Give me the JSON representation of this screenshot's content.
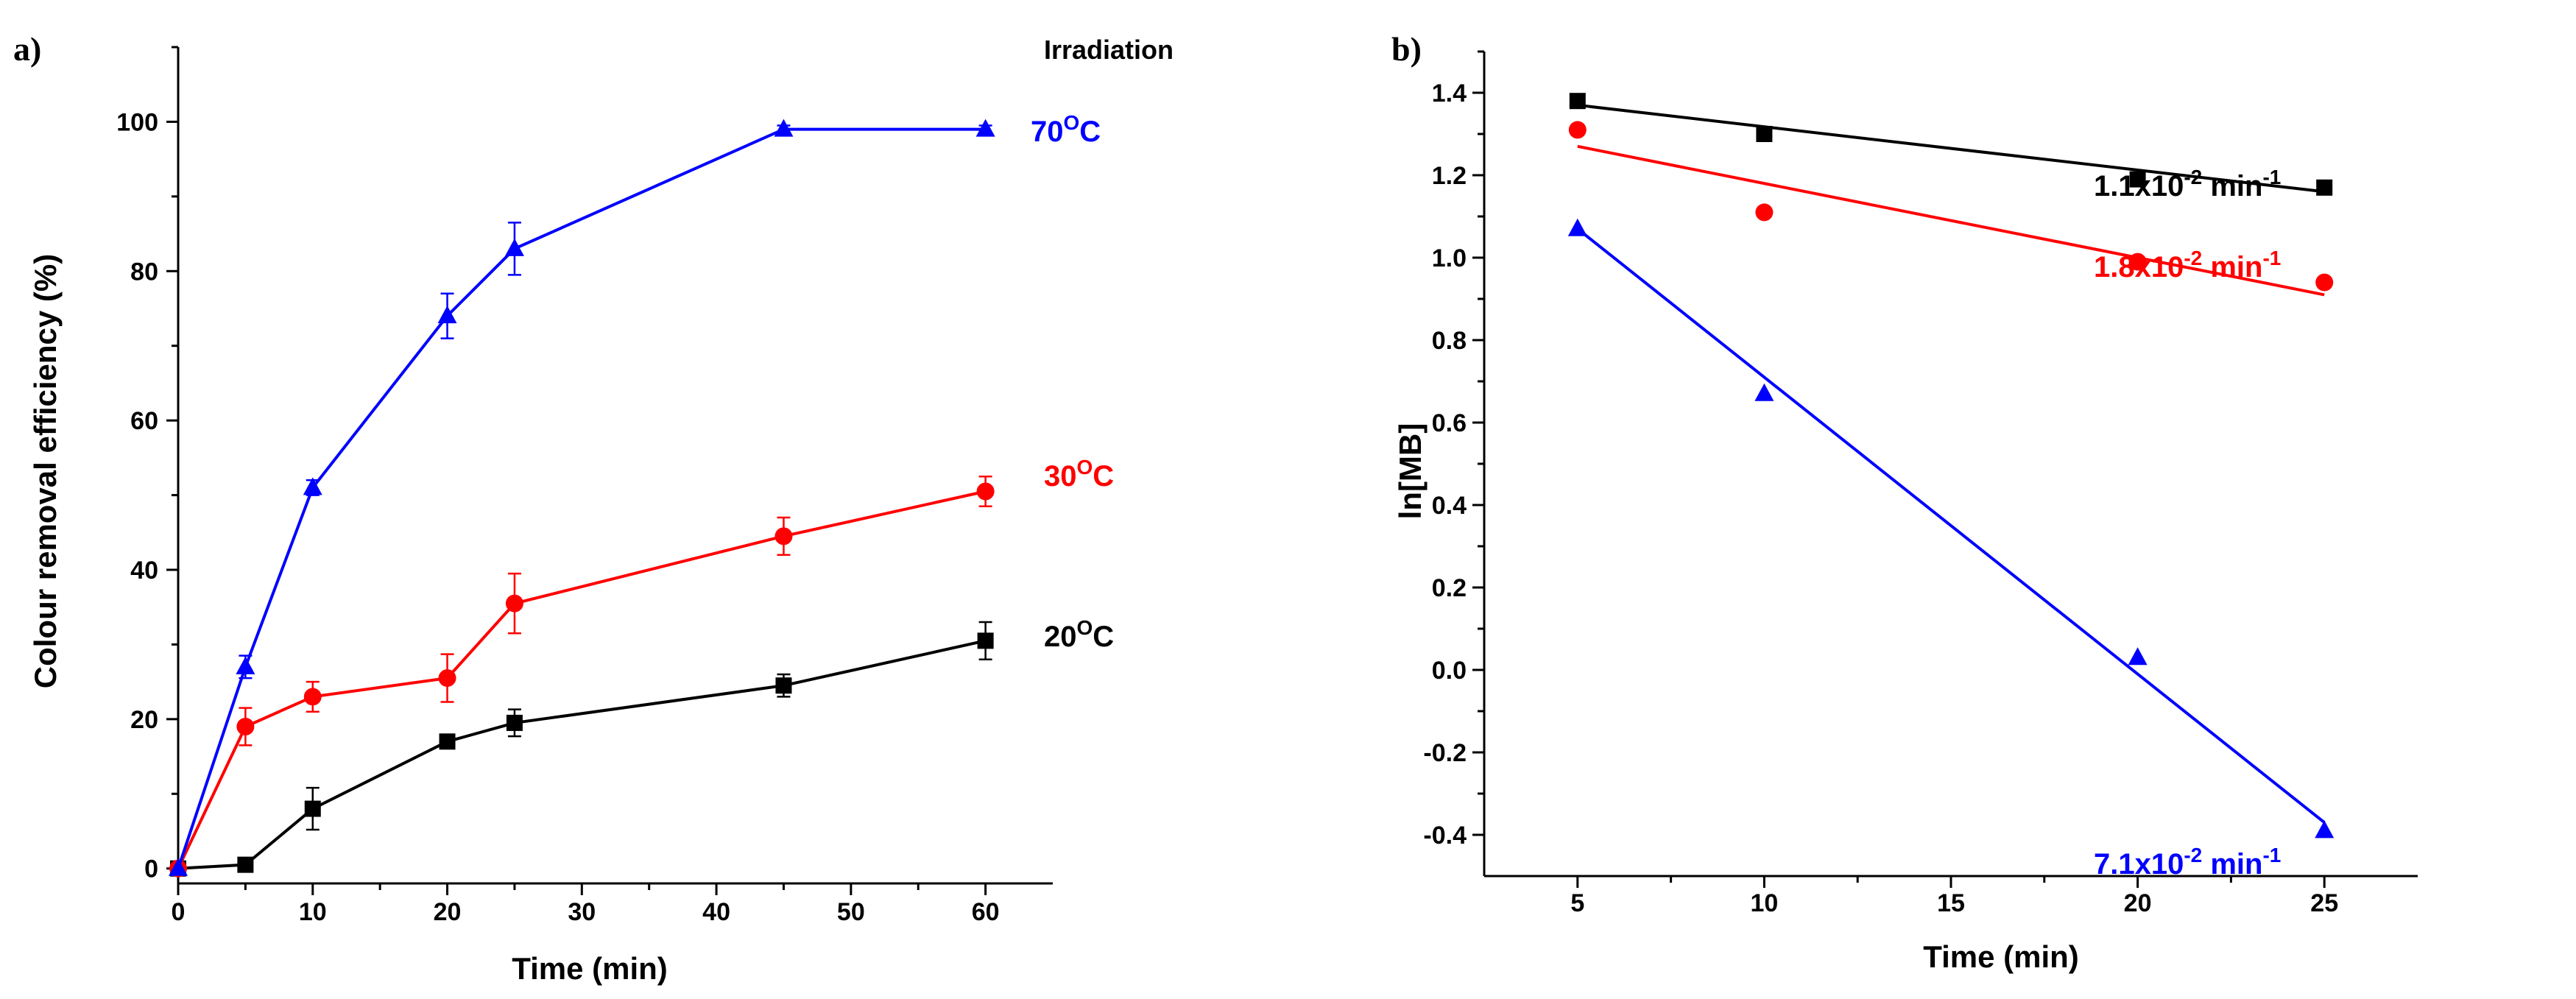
{
  "colors": {
    "black": "#000000",
    "red": "#ff0000",
    "blue": "#0000ff"
  },
  "chart_data": [
    {
      "panel_label": "a)",
      "type": "line",
      "title": "",
      "xlabel": "Time (min)",
      "ylabel": "Colour removal efficiency (%)",
      "xlim": [
        0,
        65
      ],
      "ylim": [
        -2,
        110
      ],
      "xticks": [
        "0",
        "10",
        "20",
        "30",
        "40",
        "50",
        "60"
      ],
      "yticks": [
        "0",
        "20",
        "40",
        "60",
        "80",
        "100"
      ],
      "grid": false,
      "corner_annotation": "Irradiation",
      "series": [
        {
          "name": "20°C",
          "label_main": "20",
          "label_sup": "O",
          "label_tail": "C",
          "color": "#000000",
          "marker": "square",
          "x": [
            0,
            5,
            10,
            20,
            25,
            45,
            60
          ],
          "y": [
            0,
            0.5,
            8,
            17,
            19.5,
            24.5,
            30.5
          ],
          "err": [
            0,
            0.3,
            2.8,
            0.6,
            1.8,
            1.5,
            2.5
          ]
        },
        {
          "name": "30°C",
          "label_main": "30",
          "label_sup": "O",
          "label_tail": "C",
          "color": "#ff0000",
          "marker": "circle",
          "x": [
            0,
            5,
            10,
            20,
            25,
            45,
            60
          ],
          "y": [
            0,
            19,
            23,
            25.5,
            35.5,
            44.5,
            50.5
          ],
          "err": [
            0,
            2.5,
            2,
            3.2,
            4,
            2.5,
            2
          ]
        },
        {
          "name": "70°C",
          "label_main": "70",
          "label_sup": "O",
          "label_tail": "C",
          "color": "#0000ff",
          "marker": "triangle",
          "x": [
            0,
            5,
            10,
            20,
            25,
            45,
            60
          ],
          "y": [
            0,
            27,
            51,
            74,
            83,
            99,
            99
          ],
          "err": [
            0,
            1.5,
            1,
            3,
            3.5,
            0.5,
            0.5
          ]
        }
      ]
    },
    {
      "panel_label": "b)",
      "type": "scatter",
      "title": "",
      "xlabel": "Time (min)",
      "ylabel": "ln[MB]",
      "xlim": [
        2.5,
        27.5
      ],
      "ylim": [
        -0.5,
        1.5
      ],
      "xticks": [
        "5",
        "10",
        "15",
        "20",
        "25"
      ],
      "yticks": [
        "-0.4",
        "-0.2",
        "0.0",
        "0.2",
        "0.4",
        "0.6",
        "0.8",
        "1.0",
        "1.2",
        "1.4"
      ],
      "grid": false,
      "series": [
        {
          "name": "1.1x10-2 min-1",
          "label_main": "1.1x10",
          "label_sup": "-2",
          "label_tail": " min",
          "label_sup2": "-1",
          "color": "#000000",
          "marker": "square",
          "x": [
            5,
            10,
            20,
            25
          ],
          "y": [
            1.38,
            1.3,
            1.19,
            1.17
          ],
          "fit": [
            [
              5,
              1.37
            ],
            [
              25,
              1.16
            ]
          ]
        },
        {
          "name": "1.8x10-2 min-1",
          "label_main": "1.8x10",
          "label_sup": "-2",
          "label_tail": " min",
          "label_sup2": "-1",
          "color": "#ff0000",
          "marker": "circle",
          "x": [
            5,
            10,
            20,
            25
          ],
          "y": [
            1.31,
            1.11,
            0.99,
            0.94
          ],
          "fit": [
            [
              5,
              1.27
            ],
            [
              25,
              0.91
            ]
          ]
        },
        {
          "name": "7.1x10-2 min-1",
          "label_main": "7.1x10",
          "label_sup": "-2",
          "label_tail": " min",
          "label_sup2": "-1",
          "color": "#0000ff",
          "marker": "triangle",
          "x": [
            5,
            10,
            20,
            25
          ],
          "y": [
            1.07,
            0.67,
            0.03,
            -0.39
          ],
          "fit": [
            [
              5,
              1.07
            ],
            [
              25,
              -0.37
            ]
          ]
        }
      ]
    }
  ]
}
